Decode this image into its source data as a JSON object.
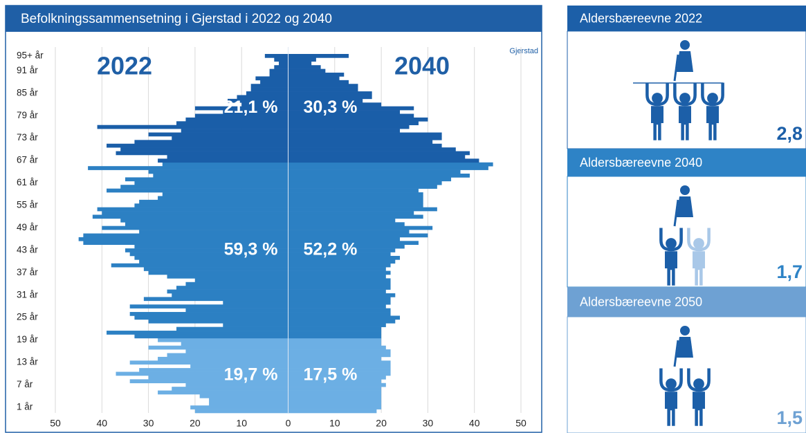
{
  "chart_data": {
    "type": "pyramid",
    "title": "Befolkningssammensetning i Gjerstad i 2022 og 2040",
    "source_label": "Gjerstad",
    "categories": [
      null,
      "1 år",
      null,
      null,
      null,
      null,
      null,
      "7 år",
      null,
      null,
      null,
      null,
      null,
      "13 år",
      null,
      null,
      null,
      null,
      null,
      "19 år",
      null,
      null,
      null,
      null,
      null,
      "25 år",
      null,
      null,
      null,
      null,
      null,
      "31 år",
      null,
      null,
      null,
      null,
      null,
      "37 år",
      null,
      null,
      null,
      null,
      null,
      "43 år",
      null,
      null,
      null,
      null,
      null,
      "49 år",
      null,
      null,
      null,
      null,
      null,
      "55 år",
      null,
      null,
      null,
      null,
      null,
      "61 år",
      null,
      null,
      null,
      null,
      null,
      "67 år",
      null,
      null,
      null,
      null,
      null,
      "73 år",
      null,
      null,
      null,
      null,
      null,
      "79 år",
      null,
      null,
      null,
      null,
      null,
      "85 år",
      null,
      null,
      null,
      null,
      null,
      "91 år",
      null,
      null,
      null,
      "95+ år"
    ],
    "series": [
      {
        "name": "2022",
        "side": "left",
        "values": [
          20,
          21,
          17,
          17,
          19,
          28,
          25,
          22,
          34,
          30,
          37,
          32,
          21,
          34,
          28,
          26,
          22,
          30,
          23,
          28,
          33,
          39,
          24,
          14,
          30,
          33,
          34,
          22,
          34,
          14,
          31,
          25,
          26,
          24,
          22,
          20,
          26,
          30,
          31,
          38,
          32,
          33,
          34,
          35,
          33,
          44,
          45,
          44,
          32,
          40,
          35,
          36,
          42,
          40,
          41,
          33,
          32,
          28,
          27,
          39,
          36,
          33,
          35,
          29,
          30,
          43,
          27,
          28,
          26,
          37,
          36,
          39,
          33,
          25,
          30,
          23,
          41,
          24,
          22,
          20,
          14,
          20,
          10,
          13,
          11,
          9,
          8,
          8,
          6,
          7,
          4,
          4,
          3,
          2,
          3,
          5
        ]
      },
      {
        "name": "2040",
        "side": "right",
        "values": [
          19,
          20,
          20,
          20,
          20,
          20,
          20,
          21,
          20,
          21,
          22,
          22,
          22,
          22,
          20,
          22,
          22,
          21,
          20,
          20,
          20,
          20,
          20,
          21,
          23,
          24,
          22,
          22,
          21,
          22,
          22,
          23,
          21,
          22,
          22,
          22,
          21,
          22,
          21,
          22,
          23,
          24,
          22,
          23,
          25,
          28,
          24,
          30,
          26,
          31,
          25,
          23,
          29,
          27,
          32,
          29,
          29,
          29,
          29,
          28,
          32,
          33,
          35,
          39,
          37,
          43,
          44,
          41,
          38,
          39,
          36,
          33,
          31,
          33,
          33,
          24,
          26,
          28,
          30,
          27,
          24,
          27,
          20,
          16,
          18,
          18,
          15,
          15,
          13,
          11,
          12,
          8,
          7,
          5,
          6,
          13
        ]
      }
    ],
    "age_groups": [
      {
        "first": 0,
        "last": 19,
        "color": "#6cafe4",
        "labels": [
          "19,7 %",
          "17,5 %"
        ]
      },
      {
        "first": 20,
        "last": 66,
        "color": "#2c80c3",
        "labels": [
          "59,3 %",
          "52,2 %"
        ]
      },
      {
        "first": 67,
        "last": 95,
        "color": "#1a5ea8",
        "labels": [
          "21,1 %",
          "30,3 %"
        ]
      }
    ],
    "xlim": [
      -50,
      50
    ],
    "xticks": [
      {
        "value": -50,
        "label": "50"
      },
      {
        "value": -40,
        "label": "40"
      },
      {
        "value": -30,
        "label": "30"
      },
      {
        "value": -20,
        "label": "20"
      },
      {
        "value": -10,
        "label": "10"
      },
      0,
      10,
      20,
      30,
      40,
      50
    ],
    "grid": true
  },
  "side_panels": [
    {
      "title": "Aldersbæreevne 2022",
      "value_label": "2,8",
      "color": "#1c5fa8"
    },
    {
      "title": "Aldersbæreevne 2040",
      "value_label": "1,7",
      "color": "#2e83c6"
    },
    {
      "title": "Aldersbæreevne 2050",
      "value_label": "1,5",
      "color": "#6ea1d3"
    }
  ]
}
